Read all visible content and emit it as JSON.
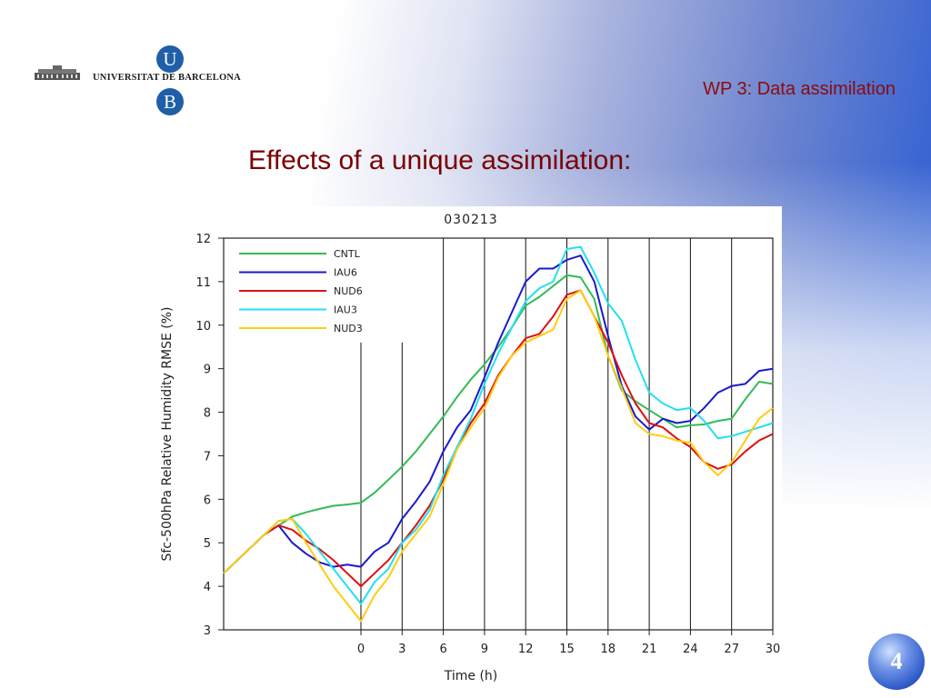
{
  "logo": {
    "u": "U",
    "text": "UNIVERSITAT DE BARCELONA",
    "b": "B"
  },
  "header": {
    "wp_title": "WP  3: Data assimilation"
  },
  "slide": {
    "title": "Effects of a unique assimilation:",
    "page_number": "4"
  },
  "chart_data": {
    "type": "line",
    "title": "030213",
    "xlabel": "Time (h)",
    "ylabel": "Sfc-500hPa  Relative Humidity RMSE (%)",
    "xlim": [
      -10,
      30
    ],
    "ylim": [
      3,
      12
    ],
    "x_ticks": [
      0,
      3,
      6,
      9,
      12,
      15,
      18,
      21,
      24,
      27,
      30
    ],
    "y_ticks": [
      3,
      4,
      5,
      6,
      7,
      8,
      9,
      10,
      11,
      12
    ],
    "vertical_lines": [
      0,
      3,
      6,
      9,
      12,
      15,
      18,
      21,
      24,
      27
    ],
    "legend_position": "top-left",
    "series": [
      {
        "name": "CNTL",
        "color": "#33bb55",
        "x": [
          -10,
          -9,
          -8,
          -7,
          -6,
          -5,
          -4,
          -3,
          -2,
          -1,
          0,
          1,
          2,
          3,
          4,
          5,
          6,
          7,
          8,
          9,
          10,
          11,
          12,
          13,
          14,
          15,
          16,
          17,
          18,
          19,
          20,
          21,
          22,
          23,
          24,
          25,
          26,
          27,
          28,
          29,
          30
        ],
        "y": [
          4.3,
          4.6,
          4.9,
          5.2,
          5.4,
          5.6,
          5.7,
          5.78,
          5.85,
          5.88,
          5.92,
          6.15,
          6.45,
          6.75,
          7.1,
          7.5,
          7.9,
          8.35,
          8.75,
          9.1,
          9.5,
          9.95,
          10.45,
          10.65,
          10.9,
          11.15,
          11.1,
          10.6,
          9.3,
          8.5,
          8.25,
          8.05,
          7.85,
          7.65,
          7.7,
          7.72,
          7.8,
          7.85,
          8.3,
          8.7,
          8.65
        ]
      },
      {
        "name": "IAU6",
        "color": "#1a1acc",
        "x": [
          -10,
          -9,
          -8,
          -7,
          -6,
          -5,
          -4,
          -3,
          -2,
          -1,
          0,
          1,
          2,
          3,
          4,
          5,
          6,
          7,
          8,
          9,
          10,
          11,
          12,
          13,
          14,
          15,
          16,
          17,
          18,
          19,
          20,
          21,
          22,
          23,
          24,
          25,
          26,
          27,
          28,
          29,
          30
        ],
        "y": [
          4.3,
          4.6,
          4.9,
          5.2,
          5.4,
          5.0,
          4.75,
          4.55,
          4.45,
          4.5,
          4.45,
          4.8,
          5.0,
          5.55,
          5.95,
          6.4,
          7.1,
          7.65,
          8.05,
          8.8,
          9.6,
          10.3,
          11.0,
          11.3,
          11.3,
          11.5,
          11.6,
          11.0,
          9.75,
          8.6,
          7.9,
          7.6,
          7.85,
          7.75,
          7.8,
          8.1,
          8.45,
          8.6,
          8.65,
          8.95,
          9.0
        ]
      },
      {
        "name": "NUD6",
        "color": "#dd1111",
        "x": [
          -10,
          -9,
          -8,
          -7,
          -6,
          -5,
          -4,
          -3,
          -2,
          -1,
          0,
          1,
          2,
          3,
          4,
          5,
          6,
          7,
          8,
          9,
          10,
          11,
          12,
          13,
          14,
          15,
          16,
          17,
          18,
          19,
          20,
          21,
          22,
          23,
          24,
          25,
          26,
          27,
          28,
          29,
          30
        ],
        "y": [
          4.3,
          4.6,
          4.9,
          5.2,
          5.4,
          5.3,
          5.05,
          4.85,
          4.6,
          4.3,
          4.0,
          4.3,
          4.6,
          5.0,
          5.4,
          5.85,
          6.45,
          7.2,
          7.75,
          8.2,
          8.85,
          9.3,
          9.7,
          9.8,
          10.2,
          10.7,
          10.8,
          10.2,
          9.6,
          8.85,
          8.2,
          7.75,
          7.65,
          7.4,
          7.2,
          6.85,
          6.7,
          6.8,
          7.1,
          7.35,
          7.5
        ]
      },
      {
        "name": "IAU3",
        "color": "#22e0f0",
        "x": [
          -10,
          -9,
          -8,
          -7,
          -6,
          -5,
          -4,
          -3,
          -2,
          -1,
          0,
          1,
          2,
          3,
          4,
          5,
          6,
          7,
          8,
          9,
          10,
          11,
          12,
          13,
          14,
          15,
          16,
          17,
          18,
          19,
          20,
          21,
          22,
          23,
          24,
          25,
          26,
          27,
          28,
          29,
          30
        ],
        "y": [
          4.3,
          4.6,
          4.9,
          5.2,
          5.5,
          5.55,
          5.2,
          4.8,
          4.4,
          4.0,
          3.6,
          4.1,
          4.4,
          5.0,
          5.3,
          5.75,
          6.55,
          7.2,
          7.85,
          8.65,
          9.35,
          9.95,
          10.55,
          10.85,
          11.0,
          11.75,
          11.8,
          11.2,
          10.5,
          10.1,
          9.2,
          8.45,
          8.2,
          8.05,
          8.1,
          7.8,
          7.4,
          7.45,
          7.55,
          7.65,
          7.75
        ]
      },
      {
        "name": "NUD3",
        "color": "#ffcc11",
        "x": [
          -10,
          -9,
          -8,
          -7,
          -6,
          -5,
          -4,
          -3,
          -2,
          -1,
          0,
          1,
          2,
          3,
          4,
          5,
          6,
          7,
          8,
          9,
          10,
          11,
          12,
          13,
          14,
          15,
          16,
          17,
          18,
          19,
          20,
          21,
          22,
          23,
          24,
          25,
          26,
          27,
          28,
          29,
          30
        ],
        "y": [
          4.3,
          4.6,
          4.9,
          5.2,
          5.5,
          5.55,
          5.0,
          4.5,
          4.0,
          3.6,
          3.2,
          3.8,
          4.2,
          4.8,
          5.2,
          5.6,
          6.35,
          7.15,
          7.65,
          8.1,
          8.8,
          9.3,
          9.6,
          9.75,
          9.9,
          10.6,
          10.8,
          10.2,
          9.3,
          8.55,
          7.75,
          7.5,
          7.45,
          7.35,
          7.3,
          6.85,
          6.55,
          6.85,
          7.35,
          7.85,
          8.1
        ]
      }
    ]
  }
}
